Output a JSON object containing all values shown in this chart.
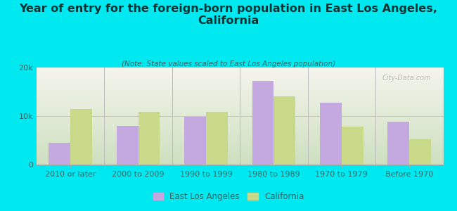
{
  "title": "Year of entry for the foreign-born population in East Los Angeles,\nCalifornia",
  "subtitle": "(Note: State values scaled to East Los Angeles population)",
  "categories": [
    "2010 or later",
    "2000 to 2009",
    "1990 to 1999",
    "1980 to 1989",
    "1970 to 1979",
    "Before 1970"
  ],
  "east_la_values": [
    4500,
    8000,
    9800,
    17200,
    12800,
    8800
  ],
  "california_values": [
    11500,
    10800,
    10900,
    14000,
    7800,
    5200
  ],
  "east_la_color": "#c4a8e0",
  "california_color": "#c8d98a",
  "background_color": "#00e8f0",
  "ylim": [
    0,
    20000
  ],
  "yticks": [
    0,
    10000,
    20000
  ],
  "ytick_labels": [
    "0",
    "10k",
    "20k"
  ],
  "bar_width": 0.32,
  "watermark": "City-Data.com",
  "legend_labels": [
    "East Los Angeles",
    "California"
  ],
  "title_fontsize": 11.5,
  "subtitle_fontsize": 7.5,
  "tick_fontsize": 8,
  "legend_fontsize": 8.5,
  "title_color": "#003333",
  "subtitle_color": "#336666",
  "tick_color": "#336666",
  "grid_color": "#c8c8c8"
}
